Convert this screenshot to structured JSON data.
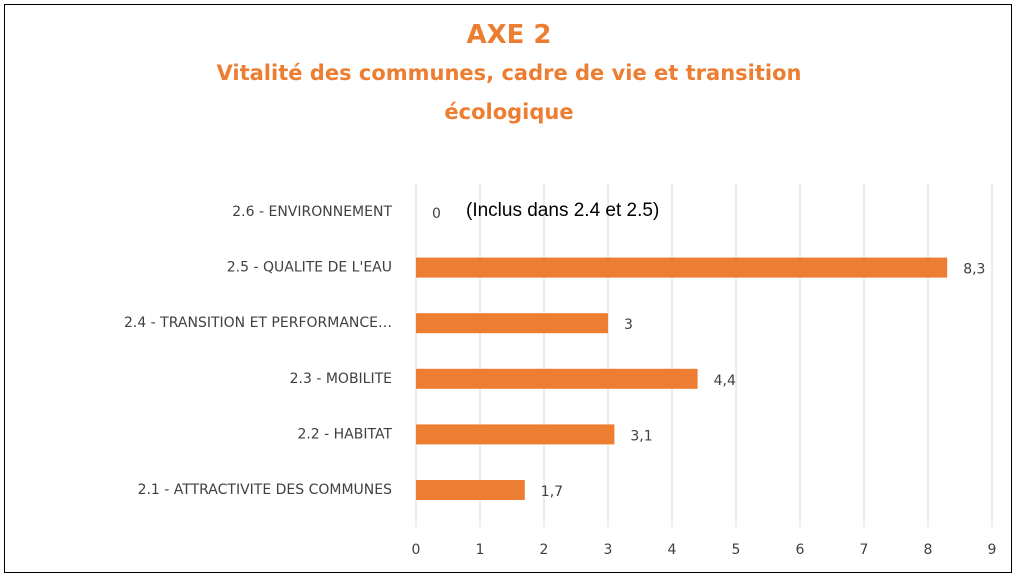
{
  "chart_data": {
    "type": "bar",
    "orientation": "horizontal",
    "title": "AXE 2",
    "subtitle": "Vitalité des communes, cadre de vie et transition écologique",
    "categories": [
      "2.6 - ENVIRONNEMENT",
      "2.5 - QUALITE DE L'EAU",
      "2.4 - TRANSITION ET PERFORMANCE…",
      "2.3 - MOBILITE",
      "2.2 - HABITAT",
      "2.1 - ATTRACTIVITE DES COMMUNES"
    ],
    "values": [
      0,
      8.3,
      3,
      4.4,
      3.1,
      1.7
    ],
    "value_labels": [
      "0",
      "8,3",
      "3",
      "4,4",
      "3,1",
      "1,7"
    ],
    "annotation": "(Inclus dans 2.4 et 2.5)",
    "color": "#ED7D31",
    "xlim": [
      0,
      9
    ],
    "xticks": [
      0,
      1,
      2,
      3,
      4,
      5,
      6,
      7,
      8,
      9
    ],
    "grid": true
  }
}
